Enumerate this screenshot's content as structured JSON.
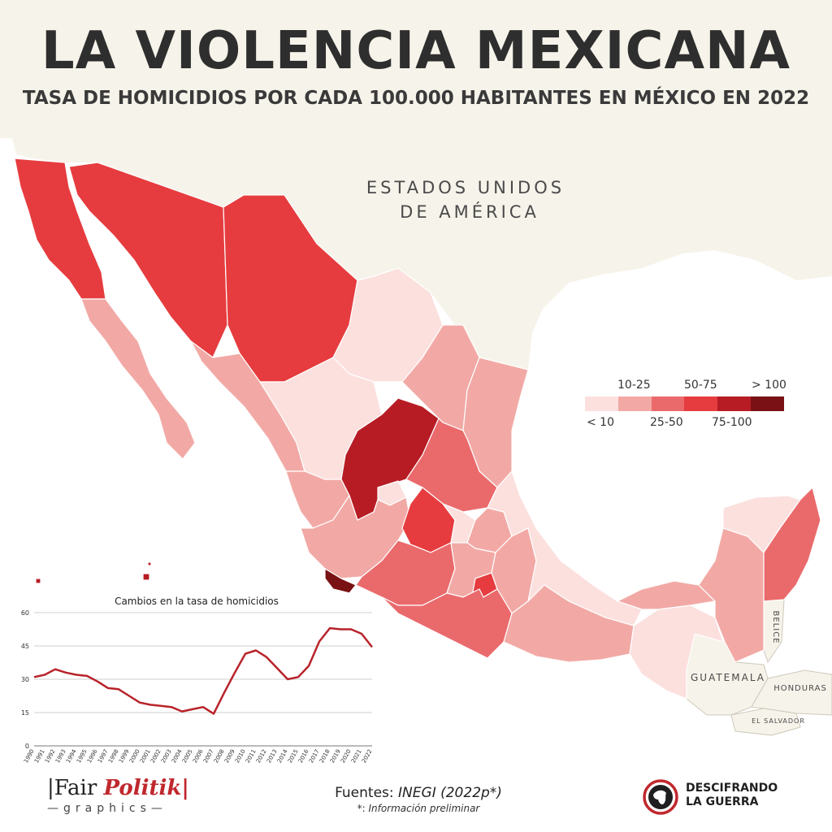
{
  "header": {
    "title": "LA VIOLENCIA MEXICANA",
    "subtitle": "TASA DE HOMICIDIOS POR CADA 100.000 HABITANTES EN MÉXICO EN 2022"
  },
  "map": {
    "country_labels": {
      "usa_line1": "ESTADOS UNIDOS",
      "usa_line2": "DE AMÉRICA",
      "guatemala": "GUATEMALA",
      "belice": "BELICE",
      "honduras": "HONDURAS",
      "el_salvador": "EL SALVADOR"
    },
    "colors": {
      "land_neighbors": "#f6f3ea",
      "sea": "#ffffff",
      "border": "#ffffff"
    }
  },
  "legend": {
    "labels_top": [
      "10-25",
      "50-75",
      "> 100"
    ],
    "labels_bottom": [
      "< 10",
      "25-50",
      "75-100"
    ],
    "colors": [
      "#fbe0de",
      "#f2a9a5",
      "#ea6a6c",
      "#e63c3f",
      "#b71c24",
      "#7a1114"
    ]
  },
  "chart_data": {
    "type": "line",
    "title": "Cambios en la tasa de homicidios",
    "x": [
      1990,
      1991,
      1992,
      1993,
      1994,
      1995,
      1996,
      1997,
      1998,
      1999,
      2000,
      2001,
      2002,
      2003,
      2004,
      2005,
      2006,
      2007,
      2008,
      2009,
      2010,
      2011,
      2012,
      2013,
      2014,
      2015,
      2016,
      2017,
      2018,
      2019,
      2020,
      2021,
      2022
    ],
    "series": [
      {
        "values": [
          31,
          32,
          34.5,
          33,
          32,
          31.5,
          29,
          26,
          25.5,
          22.5,
          19.5,
          18.5,
          18,
          17.5,
          15.5,
          16.5,
          17.5,
          14.5,
          24,
          33,
          41.5,
          43,
          40,
          35,
          30,
          31,
          36,
          47,
          53,
          52.5,
          52.5,
          50.5,
          44.5
        ]
      }
    ],
    "yticks": [
      0,
      15,
      30,
      45,
      60
    ],
    "ylim": [
      0,
      60
    ],
    "line_color": "#b8232a",
    "grid": true
  },
  "footer": {
    "brand_left_1": "|Fair ",
    "brand_left_2": "Politik|",
    "brand_left_sub": "—graphics—",
    "sources_label": "Fuentes: ",
    "sources_value": "INEGI (2022p*)",
    "note_star": "*: ",
    "note_value": "Información preliminar",
    "brand_right_1": "DESCIFRANDO",
    "brand_right_2": "LA GUERRA"
  }
}
